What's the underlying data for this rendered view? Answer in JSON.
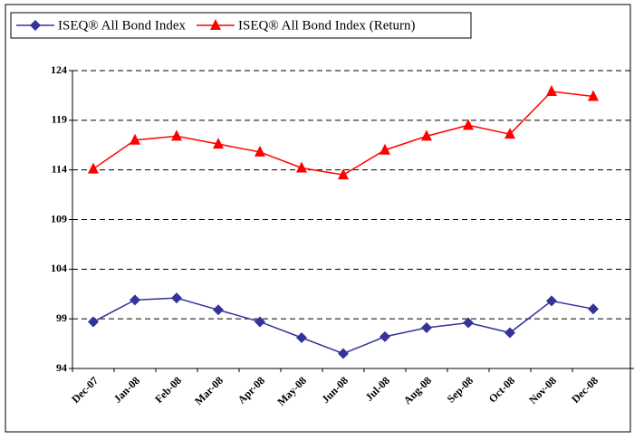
{
  "chart_data": {
    "type": "line",
    "categories": [
      "Dec-07",
      "Jan-08",
      "Feb-08",
      "Mar-08",
      "Apr-08",
      "May-08",
      "Jun-08",
      "Jul-08",
      "Aug-08",
      "Sep-08",
      "Oct-08",
      "Nov-08",
      "Dec-08"
    ],
    "series": [
      {
        "name": "ISEQ® All Bond Index",
        "color": "#333399",
        "marker": "diamond",
        "values": [
          98.7,
          100.9,
          101.1,
          99.9,
          98.7,
          97.1,
          95.5,
          97.2,
          98.1,
          98.6,
          97.6,
          100.8,
          100.0
        ]
      },
      {
        "name": "ISEQ® All Bond Index (Return)",
        "color": "#ff0000",
        "marker": "triangle",
        "values": [
          114.1,
          117.0,
          117.4,
          116.6,
          115.8,
          114.2,
          113.5,
          116.0,
          117.4,
          118.5,
          117.6,
          121.9,
          121.4
        ]
      }
    ],
    "ylim": [
      94,
      124
    ],
    "yticks": [
      94,
      99,
      104,
      109,
      114,
      119,
      124
    ],
    "grid": true,
    "legend": "top-left"
  }
}
